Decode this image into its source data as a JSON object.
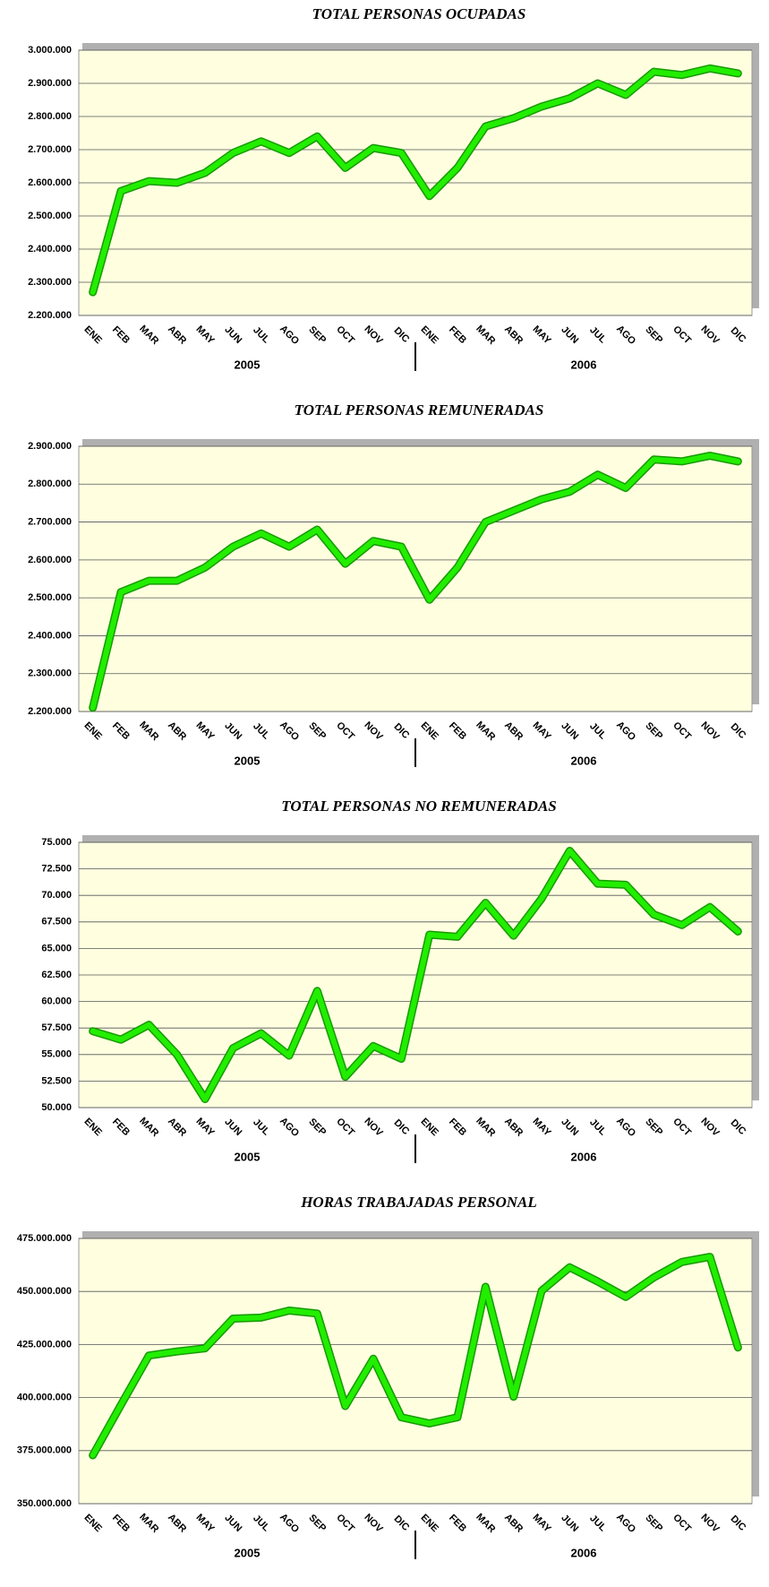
{
  "chart_data": [
    {
      "type": "line",
      "title": "TOTAL PERSONAS OCUPADAS",
      "categories": [
        "ENE",
        "FEB",
        "MAR",
        "ABR",
        "MAY",
        "JUN",
        "JUL",
        "AGO",
        "SEP",
        "OCT",
        "NOV",
        "DIC",
        "ENE",
        "FEB",
        "MAR",
        "ABR",
        "MAY",
        "JUN",
        "JUL",
        "AGO",
        "SEP",
        "OCT",
        "NOV",
        "DIC"
      ],
      "years": [
        "2005",
        "2006"
      ],
      "series": [
        {
          "color": "#22ee00",
          "values": [
            2270000,
            2575000,
            2605000,
            2600000,
            2630000,
            2690000,
            2725000,
            2690000,
            2740000,
            2645000,
            2705000,
            2690000,
            2560000,
            2645000,
            2770000,
            2795000,
            2830000,
            2855000,
            2900000,
            2865000,
            2935000,
            2925000,
            2945000,
            2930000
          ]
        }
      ],
      "ylim": [
        2200000,
        3000000
      ],
      "yticks": [
        {
          "value": 2200000,
          "label": "2.200.000"
        },
        {
          "value": 2300000,
          "label": "2.300.000"
        },
        {
          "value": 2400000,
          "label": "2.400.000"
        },
        {
          "value": 2500000,
          "label": "2.500.000"
        },
        {
          "value": 2600000,
          "label": "2.600.000"
        },
        {
          "value": 2700000,
          "label": "2.700.000"
        },
        {
          "value": 2800000,
          "label": "2.800.000"
        },
        {
          "value": 2900000,
          "label": "2.900.000"
        },
        {
          "value": 3000000,
          "label": "3.000.000"
        }
      ],
      "grid": true
    },
    {
      "type": "line",
      "title": "TOTAL PERSONAS REMUNERADAS",
      "categories": [
        "ENE",
        "FEB",
        "MAR",
        "ABR",
        "MAY",
        "JUN",
        "JUL",
        "AGO",
        "SEP",
        "OCT",
        "NOV",
        "DIC",
        "ENE",
        "FEB",
        "MAR",
        "ABR",
        "MAY",
        "JUN",
        "JUL",
        "AGO",
        "SEP",
        "OCT",
        "NOV",
        "DIC"
      ],
      "years": [
        "2005",
        "2006"
      ],
      "series": [
        {
          "color": "#22ee00",
          "values": [
            2210000,
            2515000,
            2545000,
            2545000,
            2580000,
            2635000,
            2670000,
            2635000,
            2680000,
            2590000,
            2650000,
            2635000,
            2495000,
            2580000,
            2700000,
            2730000,
            2760000,
            2780000,
            2825000,
            2790000,
            2865000,
            2860000,
            2875000,
            2860000
          ]
        }
      ],
      "ylim": [
        2200000,
        2900000
      ],
      "yticks": [
        {
          "value": 2200000,
          "label": "2.200.000"
        },
        {
          "value": 2300000,
          "label": "2.300.000"
        },
        {
          "value": 2400000,
          "label": "2.400.000"
        },
        {
          "value": 2500000,
          "label": "2.500.000"
        },
        {
          "value": 2600000,
          "label": "2.600.000"
        },
        {
          "value": 2700000,
          "label": "2.700.000"
        },
        {
          "value": 2800000,
          "label": "2.800.000"
        },
        {
          "value": 2900000,
          "label": "2.900.000"
        }
      ],
      "grid": true
    },
    {
      "type": "line",
      "title": "TOTAL PERSONAS NO REMUNERADAS",
      "categories": [
        "ENE",
        "FEB",
        "MAR",
        "ABR",
        "MAY",
        "JUN",
        "JUL",
        "AGO",
        "SEP",
        "OCT",
        "NOV",
        "DIC",
        "ENE",
        "FEB",
        "MAR",
        "ABR",
        "MAY",
        "JUN",
        "JUL",
        "AGO",
        "SEP",
        "OCT",
        "NOV",
        "DIC"
      ],
      "years": [
        "2005",
        "2006"
      ],
      "series": [
        {
          "color": "#22ee00",
          "values": [
            57200,
            56400,
            57800,
            55000,
            50800,
            55600,
            57000,
            54900,
            61000,
            52900,
            55800,
            54600,
            66300,
            66100,
            69300,
            66200,
            69700,
            74200,
            71100,
            71000,
            68200,
            67200,
            68900,
            66600
          ]
        }
      ],
      "ylim": [
        50000,
        75000
      ],
      "yticks": [
        {
          "value": 50000,
          "label": "50.000"
        },
        {
          "value": 52500,
          "label": "52.500"
        },
        {
          "value": 55000,
          "label": "55.000"
        },
        {
          "value": 57500,
          "label": "57.500"
        },
        {
          "value": 60000,
          "label": "60.000"
        },
        {
          "value": 62500,
          "label": "62.500"
        },
        {
          "value": 65000,
          "label": "65.000"
        },
        {
          "value": 67500,
          "label": "67.500"
        },
        {
          "value": 70000,
          "label": "70.000"
        },
        {
          "value": 72500,
          "label": "72.500"
        },
        {
          "value": 75000,
          "label": "75.000"
        }
      ],
      "grid": true
    },
    {
      "type": "line",
      "title": "HORAS TRABAJADAS PERSONAL",
      "categories": [
        "ENE",
        "FEB",
        "MAR",
        "ABR",
        "MAY",
        "JUN",
        "JUL",
        "AGO",
        "SEP",
        "OCT",
        "NOV",
        "DIC",
        "ENE",
        "FEB",
        "MAR",
        "ABR",
        "MAY",
        "JUN",
        "JUL",
        "AGO",
        "SEP",
        "OCT",
        "NOV",
        "DIC"
      ],
      "years": [
        "2005",
        "2006"
      ],
      "series": [
        {
          "color": "#22ee00",
          "values": [
            372800000,
            396500000,
            419800000,
            421700000,
            423200000,
            437200000,
            437700000,
            441000000,
            439600000,
            396000000,
            418300000,
            390700000,
            387800000,
            390700000,
            452200000,
            400400000,
            450300000,
            461400000,
            454700000,
            447400000,
            456600000,
            463900000,
            466300000,
            423600000
          ]
        }
      ],
      "ylim": [
        350000000,
        475000000
      ],
      "yticks": [
        {
          "value": 350000000,
          "label": "350.000.000"
        },
        {
          "value": 375000000,
          "label": "375.000.000"
        },
        {
          "value": 400000000,
          "label": "400.000.000"
        },
        {
          "value": 425000000,
          "label": "425.000.000"
        },
        {
          "value": 450000000,
          "label": "450.000.000"
        },
        {
          "value": 475000000,
          "label": "475.000.000"
        }
      ],
      "grid": true
    }
  ]
}
